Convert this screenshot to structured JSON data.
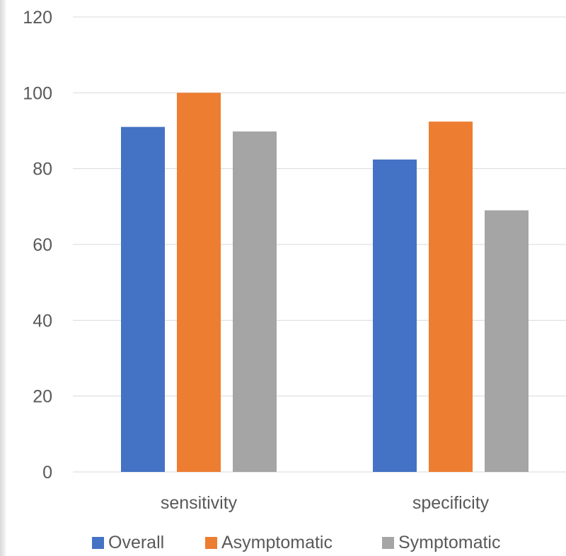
{
  "chart_data": {
    "type": "bar",
    "categories": [
      "sensitivity",
      "specificity"
    ],
    "series": [
      {
        "name": "Overall",
        "values": [
          91,
          82.4
        ],
        "color": "#4472C4"
      },
      {
        "name": "Asymptomatic",
        "values": [
          100,
          92.4
        ],
        "color": "#ED7D31"
      },
      {
        "name": "Symptomatic",
        "values": [
          89.8,
          69
        ],
        "color": "#A5A5A5"
      }
    ],
    "title": "",
    "xlabel": "",
    "ylabel": "",
    "ylim": [
      0,
      120
    ],
    "yticks": [
      0,
      20,
      40,
      60,
      80,
      100,
      120
    ],
    "grid": true,
    "legend_position": "bottom",
    "colors": {
      "gridline": "#d9d9d9",
      "axis_text": "#595959",
      "legend_text": "#595959"
    }
  }
}
